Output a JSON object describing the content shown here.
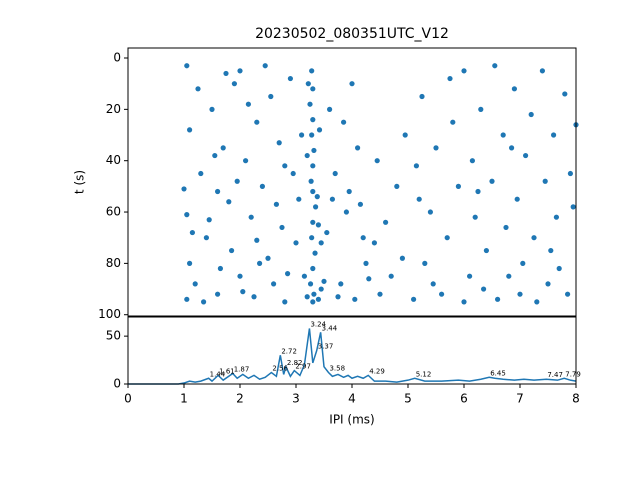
{
  "chart_data": [
    {
      "type": "scatter",
      "title": "20230502_080351UTC_V12",
      "y_label": "t (s)",
      "color": "#1f77b4",
      "xlim": [
        0,
        8
      ],
      "ylim": [
        100.5,
        -3.9
      ],
      "yticks": [
        0,
        20,
        40,
        60,
        80,
        100
      ],
      "x": [
        3.28,
        3.3,
        3.25,
        3.3,
        3.28,
        3.32,
        3.3,
        3.27,
        3.3,
        3.35,
        3.3,
        3.28,
        3.34,
        3.3,
        3.26,
        3.32,
        3.3,
        3.4,
        3.2,
        3.45,
        3.5,
        3.15,
        3.22,
        3.4,
        3.45,
        3.38,
        3.2,
        3.42,
        1.05,
        1.1,
        1.0,
        1.05,
        1.05,
        1.1,
        1.2,
        1.3,
        1.4,
        1.5,
        1.6,
        1.7,
        1.8,
        1.85,
        1.9,
        2.0,
        2.0,
        2.1,
        2.2,
        2.25,
        2.3,
        2.4,
        2.5,
        2.55,
        2.6,
        2.7,
        2.75,
        2.8,
        2.9,
        2.95,
        3.0,
        3.05,
        1.25,
        1.35,
        1.45,
        1.55,
        1.65,
        1.75,
        1.95,
        2.05,
        2.15,
        2.35,
        2.45,
        2.65,
        2.85,
        3.1,
        1.15,
        1.6,
        2.3,
        2.8,
        3.6,
        3.7,
        3.8,
        3.9,
        4.0,
        4.05,
        4.1,
        4.2,
        4.25,
        3.65,
        3.75,
        3.85,
        3.95,
        4.15,
        3.55,
        4.3,
        4.4,
        4.45,
        4.5,
        4.6,
        4.7,
        4.8,
        4.9,
        4.95,
        5.1,
        5.2,
        5.25,
        5.3,
        5.4,
        5.5,
        5.6,
        5.7,
        5.8,
        5.9,
        6.0,
        6.0,
        6.1,
        6.15,
        6.2,
        6.3,
        6.35,
        6.4,
        6.5,
        6.55,
        6.6,
        6.7,
        6.75,
        6.8,
        6.9,
        6.95,
        7.0,
        7.05,
        7.1,
        7.2,
        7.25,
        7.3,
        7.4,
        7.45,
        7.5,
        7.6,
        7.65,
        7.7,
        7.8,
        7.85,
        7.9,
        7.95,
        8.0,
        5.15,
        5.45,
        5.75,
        6.25,
        6.85,
        7.55
      ],
      "y": [
        5,
        12,
        18,
        24,
        30,
        36,
        42,
        48,
        52,
        58,
        64,
        70,
        76,
        82,
        88,
        92,
        95,
        94,
        93,
        90,
        87,
        85,
        10,
        65,
        72,
        54,
        38,
        28,
        3,
        28,
        51,
        61,
        94,
        80,
        88,
        45,
        70,
        20,
        92,
        35,
        56,
        75,
        10,
        5,
        85,
        40,
        62,
        93,
        25,
        50,
        78,
        15,
        88,
        33,
        66,
        95,
        8,
        45,
        72,
        55,
        12,
        95,
        63,
        38,
        82,
        6,
        48,
        91,
        18,
        80,
        3,
        57,
        84,
        30,
        68,
        52,
        71,
        42,
        20,
        45,
        88,
        60,
        10,
        94,
        35,
        70,
        80,
        55,
        93,
        25,
        52,
        57,
        68,
        86,
        72,
        40,
        92,
        64,
        85,
        50,
        78,
        30,
        94,
        55,
        15,
        80,
        60,
        35,
        92,
        70,
        25,
        50,
        95,
        5,
        85,
        40,
        62,
        20,
        90,
        75,
        48,
        3,
        94,
        30,
        66,
        85,
        12,
        55,
        92,
        80,
        38,
        22,
        70,
        95,
        5,
        48,
        88,
        30,
        62,
        82,
        14,
        92,
        45,
        58,
        26,
        42,
        88,
        8,
        52,
        35,
        75
      ]
    },
    {
      "type": "line",
      "x_label": "IPI (ms)",
      "color": "#1f77b4",
      "xlim": [
        0,
        8
      ],
      "xticks": [
        0,
        1,
        2,
        3,
        4,
        5,
        6,
        7,
        8
      ],
      "ylim": [
        0,
        70
      ],
      "yticks": [
        0,
        50
      ],
      "x": [
        0,
        0.9,
        1.0,
        1.1,
        1.2,
        1.3,
        1.44,
        1.5,
        1.61,
        1.7,
        1.87,
        1.95,
        2.05,
        2.15,
        2.25,
        2.35,
        2.45,
        2.56,
        2.65,
        2.72,
        2.78,
        2.82,
        2.9,
        2.97,
        3.07,
        3.15,
        3.24,
        3.3,
        3.37,
        3.44,
        3.5,
        3.58,
        3.65,
        3.75,
        3.85,
        3.93,
        4.0,
        4.1,
        4.2,
        4.29,
        4.4,
        4.6,
        4.8,
        5.0,
        5.12,
        5.3,
        5.6,
        5.9,
        6.1,
        6.3,
        6.45,
        6.55,
        6.7,
        6.9,
        7.07,
        7.25,
        7.47,
        7.67,
        7.79,
        7.9,
        8.0
      ],
      "values": [
        0,
        0,
        1,
        3,
        2,
        3,
        6,
        3,
        9,
        4,
        11,
        6,
        10,
        6,
        9,
        5,
        7,
        12,
        8,
        30,
        10,
        18,
        8,
        14,
        9,
        20,
        58,
        22,
        35,
        54,
        18,
        12,
        8,
        10,
        7,
        9,
        6,
        8,
        6,
        9,
        3,
        3,
        2,
        4,
        6,
        3,
        3,
        4,
        3,
        5,
        7,
        6,
        5,
        4,
        5,
        4,
        5,
        4,
        6,
        4,
        3
      ],
      "annotations": [
        {
          "x": 3.24,
          "y": 58
        },
        {
          "x": 3.44,
          "y": 54
        },
        {
          "x": 3.37,
          "y": 35
        },
        {
          "x": 2.72,
          "y": 30
        },
        {
          "x": 2.82,
          "y": 18
        },
        {
          "x": 1.44,
          "y": 6
        },
        {
          "x": 1.61,
          "y": 9
        },
        {
          "x": 1.87,
          "y": 11
        },
        {
          "x": 2.56,
          "y": 12
        },
        {
          "x": 2.97,
          "y": 14
        },
        {
          "x": 3.58,
          "y": 12
        },
        {
          "x": 4.29,
          "y": 9
        },
        {
          "x": 5.12,
          "y": 6
        },
        {
          "x": 6.45,
          "y": 7
        },
        {
          "x": 7.47,
          "y": 5
        },
        {
          "x": 7.79,
          "y": 6
        }
      ]
    }
  ]
}
